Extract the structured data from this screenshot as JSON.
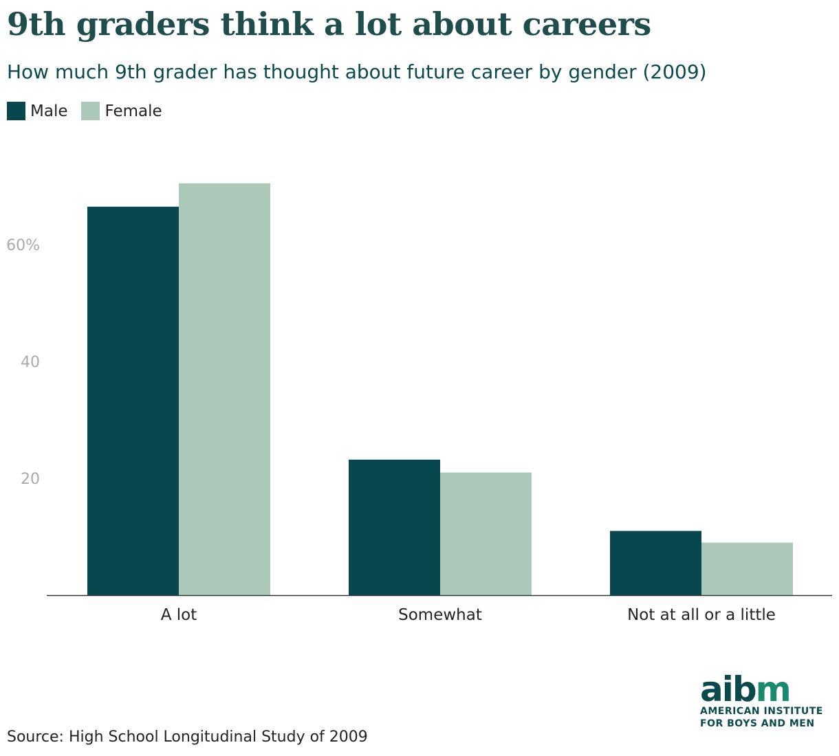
{
  "title": "9th graders think a lot about careers",
  "subtitle": "How much 9th grader has thought about future career by gender (2009)",
  "source": "Source: High School Longitudinal Study of 2009",
  "logo": {
    "word_a": "aib",
    "word_b": "m",
    "line1": "AMERICAN INSTITUTE",
    "line2": "FOR BOYS AND MEN"
  },
  "colors": {
    "male": "#08474d",
    "female": "#abc8b8",
    "tick": "#aaaaaa",
    "axis": "#333333"
  },
  "chart_data": {
    "type": "bar",
    "categories": [
      "A lot",
      "Somewhat",
      "Not at all or a little"
    ],
    "series": [
      {
        "name": "Male",
        "values": [
          66.5,
          23.2,
          11.0
        ]
      },
      {
        "name": "Female",
        "values": [
          70.5,
          21.0,
          9.0
        ]
      }
    ],
    "y_ticks": [
      {
        "value": 20,
        "label": "20"
      },
      {
        "value": 40,
        "label": "40"
      },
      {
        "value": 60,
        "label": "60%"
      }
    ],
    "ylim": [
      0,
      76
    ],
    "legend": "top-left",
    "grid": false
  }
}
